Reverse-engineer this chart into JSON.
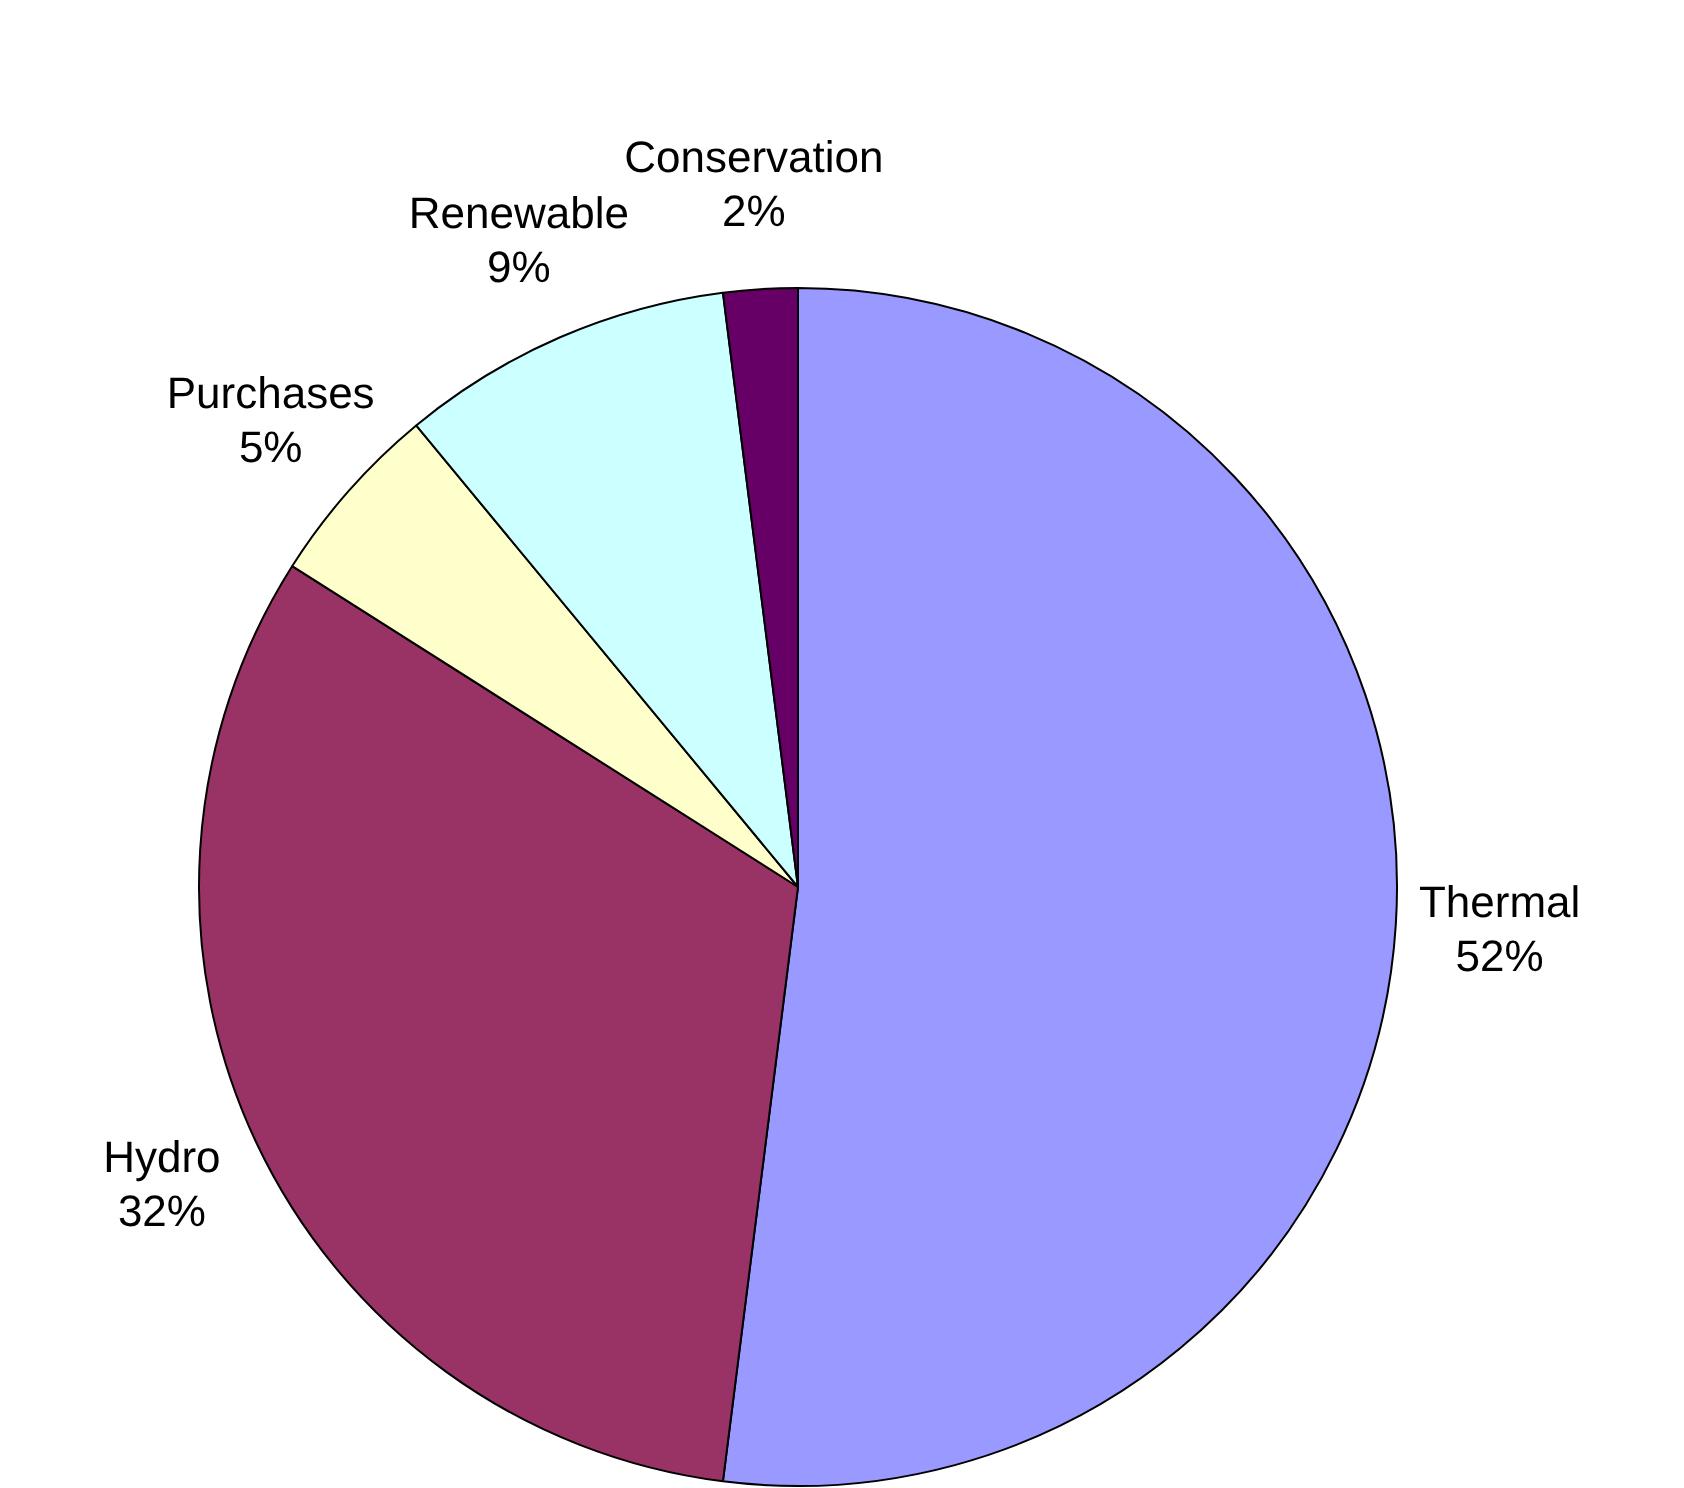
{
  "chart_data": {
    "type": "pie",
    "categories": [
      "Thermal",
      "Hydro",
      "Purchases",
      "Renewable",
      "Conservation"
    ],
    "values": [
      52,
      32,
      5,
      9,
      2
    ],
    "value_labels": [
      "52%",
      "32%",
      "5%",
      "9%",
      "2%"
    ],
    "colors": [
      "#9999ff",
      "#993366",
      "#ffffcc",
      "#ccffff",
      "#660066"
    ],
    "legend": false
  }
}
